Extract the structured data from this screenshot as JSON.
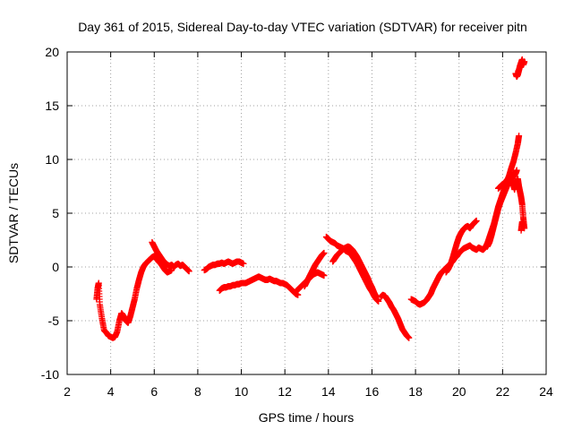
{
  "chart_data": {
    "type": "scatter",
    "title": "Day 361 of 2015, Sidereal Day-to-day VTEC variation (SDTVAR) for receiver pitn",
    "xlabel": "GPS time / hours",
    "ylabel": "SDTVAR / TECUs",
    "xlim": [
      2,
      24
    ],
    "ylim": [
      -10,
      20
    ],
    "xticks": [
      2,
      4,
      6,
      8,
      10,
      12,
      14,
      16,
      18,
      20,
      22,
      24
    ],
    "yticks": [
      -10,
      -5,
      0,
      5,
      10,
      15,
      20
    ],
    "grid": true,
    "marker": "+",
    "color": "#ff0000",
    "series": [
      {
        "name": "segment-1",
        "points": [
          [
            3.35,
            -3.0
          ],
          [
            3.4,
            -2.0
          ],
          [
            3.45,
            -1.5
          ],
          [
            3.5,
            -3.5
          ],
          [
            3.6,
            -4.8
          ],
          [
            3.7,
            -5.9
          ],
          [
            3.8,
            -6.1
          ],
          [
            3.9,
            -6.4
          ],
          [
            4.0,
            -6.5
          ],
          [
            4.1,
            -6.6
          ],
          [
            4.2,
            -6.5
          ],
          [
            4.3,
            -6.0
          ],
          [
            4.4,
            -5.0
          ],
          [
            4.5,
            -4.3
          ],
          [
            4.6,
            -4.6
          ],
          [
            4.7,
            -5.0
          ],
          [
            4.8,
            -5.2
          ],
          [
            4.9,
            -4.6
          ],
          [
            5.0,
            -3.8
          ],
          [
            5.1,
            -3.0
          ],
          [
            5.2,
            -2.0
          ],
          [
            5.3,
            -1.2
          ],
          [
            5.4,
            -0.5
          ],
          [
            5.5,
            0.0
          ],
          [
            5.6,
            0.3
          ],
          [
            5.7,
            0.5
          ],
          [
            5.8,
            0.7
          ],
          [
            5.9,
            0.9
          ],
          [
            6.0,
            1.0
          ],
          [
            6.1,
            0.8
          ],
          [
            6.2,
            0.5
          ],
          [
            6.3,
            0.3
          ],
          [
            6.4,
            0.0
          ],
          [
            6.5,
            -0.3
          ],
          [
            6.6,
            -0.5
          ],
          [
            6.7,
            -0.4
          ],
          [
            6.8,
            -0.3
          ]
        ]
      },
      {
        "name": "segment-2",
        "points": [
          [
            5.9,
            2.3
          ],
          [
            6.0,
            1.9
          ],
          [
            6.1,
            1.5
          ],
          [
            6.2,
            1.2
          ],
          [
            6.3,
            0.9
          ],
          [
            6.4,
            0.6
          ],
          [
            6.5,
            0.4
          ],
          [
            6.6,
            0.2
          ],
          [
            6.7,
            0.1
          ],
          [
            6.8,
            0.2
          ],
          [
            6.9,
            0.0
          ],
          [
            7.0,
            0.2
          ],
          [
            7.1,
            0.3
          ],
          [
            7.2,
            0.1
          ],
          [
            7.3,
            0.2
          ],
          [
            7.4,
            0.0
          ],
          [
            7.5,
            -0.2
          ],
          [
            7.6,
            -0.4
          ]
        ]
      },
      {
        "name": "segment-3",
        "points": [
          [
            8.3,
            -0.3
          ],
          [
            8.4,
            -0.2
          ],
          [
            8.5,
            0.0
          ],
          [
            8.6,
            0.1
          ],
          [
            8.7,
            0.2
          ],
          [
            8.8,
            0.2
          ],
          [
            8.9,
            0.3
          ],
          [
            9.0,
            0.3
          ],
          [
            9.1,
            0.4
          ],
          [
            9.2,
            0.3
          ],
          [
            9.3,
            0.4
          ],
          [
            9.4,
            0.5
          ],
          [
            9.5,
            0.4
          ],
          [
            9.6,
            0.3
          ],
          [
            9.7,
            0.4
          ],
          [
            9.8,
            0.5
          ],
          [
            9.9,
            0.5
          ],
          [
            10.0,
            0.4
          ],
          [
            10.1,
            0.3
          ]
        ]
      },
      {
        "name": "segment-4",
        "points": [
          [
            9.0,
            -2.2
          ],
          [
            9.1,
            -2.0
          ],
          [
            9.2,
            -1.9
          ],
          [
            9.3,
            -1.9
          ],
          [
            9.4,
            -1.8
          ],
          [
            9.5,
            -1.8
          ],
          [
            9.6,
            -1.7
          ],
          [
            9.7,
            -1.7
          ],
          [
            9.8,
            -1.6
          ],
          [
            9.9,
            -1.6
          ],
          [
            10.0,
            -1.5
          ],
          [
            10.1,
            -1.5
          ],
          [
            10.2,
            -1.5
          ],
          [
            10.3,
            -1.4
          ],
          [
            10.4,
            -1.3
          ],
          [
            10.5,
            -1.2
          ],
          [
            10.6,
            -1.1
          ],
          [
            10.7,
            -1.0
          ],
          [
            10.8,
            -0.9
          ],
          [
            10.9,
            -1.0
          ],
          [
            11.0,
            -1.1
          ],
          [
            11.1,
            -1.2
          ],
          [
            11.2,
            -1.2
          ],
          [
            11.3,
            -1.1
          ],
          [
            11.4,
            -1.2
          ],
          [
            11.5,
            -1.3
          ],
          [
            11.6,
            -1.3
          ],
          [
            11.7,
            -1.4
          ],
          [
            11.8,
            -1.5
          ],
          [
            11.9,
            -1.5
          ],
          [
            12.0,
            -1.6
          ],
          [
            12.1,
            -1.7
          ],
          [
            12.2,
            -1.9
          ],
          [
            12.3,
            -2.1
          ],
          [
            12.4,
            -2.3
          ],
          [
            12.5,
            -2.5
          ],
          [
            12.6,
            -2.6
          ]
        ]
      },
      {
        "name": "segment-5",
        "points": [
          [
            12.5,
            -2.3
          ],
          [
            12.6,
            -2.1
          ],
          [
            12.7,
            -1.9
          ],
          [
            12.8,
            -1.7
          ],
          [
            12.9,
            -1.5
          ],
          [
            13.0,
            -1.3
          ],
          [
            13.1,
            -1.1
          ],
          [
            13.2,
            -0.9
          ],
          [
            13.3,
            -0.7
          ],
          [
            13.4,
            -0.6
          ],
          [
            13.5,
            -0.5
          ],
          [
            13.6,
            -0.6
          ],
          [
            13.7,
            -0.7
          ],
          [
            13.8,
            -0.8
          ]
        ]
      },
      {
        "name": "segment-6",
        "points": [
          [
            12.9,
            -1.8
          ],
          [
            13.0,
            -1.4
          ],
          [
            13.1,
            -1.0
          ],
          [
            13.2,
            -0.6
          ],
          [
            13.3,
            -0.2
          ],
          [
            13.4,
            0.2
          ],
          [
            13.5,
            0.5
          ],
          [
            13.6,
            0.8
          ],
          [
            13.7,
            1.1
          ],
          [
            13.8,
            1.3
          ]
        ]
      },
      {
        "name": "segment-7",
        "points": [
          [
            13.9,
            2.8
          ],
          [
            14.0,
            2.6
          ],
          [
            14.1,
            2.4
          ],
          [
            14.2,
            2.3
          ],
          [
            14.3,
            2.2
          ],
          [
            14.4,
            2.0
          ],
          [
            14.5,
            1.9
          ],
          [
            14.6,
            1.8
          ],
          [
            14.7,
            1.7
          ],
          [
            14.8,
            1.5
          ],
          [
            14.9,
            1.4
          ],
          [
            15.0,
            1.3
          ],
          [
            15.1,
            1.0
          ],
          [
            15.2,
            0.7
          ],
          [
            15.3,
            0.4
          ],
          [
            15.4,
            0.0
          ],
          [
            15.5,
            -0.4
          ],
          [
            15.6,
            -0.8
          ],
          [
            15.7,
            -1.2
          ],
          [
            15.8,
            -1.6
          ],
          [
            15.9,
            -2.0
          ],
          [
            16.0,
            -2.3
          ],
          [
            16.1,
            -2.7
          ],
          [
            16.2,
            -3.0
          ],
          [
            16.3,
            -3.2
          ]
        ]
      },
      {
        "name": "segment-8",
        "points": [
          [
            14.2,
            0.5
          ],
          [
            14.3,
            0.8
          ],
          [
            14.4,
            1.1
          ],
          [
            14.5,
            1.3
          ],
          [
            14.6,
            1.5
          ],
          [
            14.7,
            1.7
          ],
          [
            14.8,
            1.8
          ],
          [
            14.9,
            1.9
          ],
          [
            15.0,
            1.8
          ],
          [
            15.1,
            1.6
          ],
          [
            15.2,
            1.3
          ],
          [
            15.3,
            1.0
          ],
          [
            15.4,
            0.6
          ],
          [
            15.5,
            0.2
          ],
          [
            15.6,
            -0.2
          ],
          [
            15.7,
            -0.6
          ],
          [
            15.8,
            -1.0
          ],
          [
            15.9,
            -1.5
          ],
          [
            16.0,
            -1.9
          ],
          [
            16.1,
            -2.4
          ],
          [
            16.2,
            -2.8
          ]
        ]
      },
      {
        "name": "segment-9",
        "points": [
          [
            16.4,
            -2.8
          ],
          [
            16.5,
            -2.6
          ],
          [
            16.6,
            -2.7
          ],
          [
            16.7,
            -3.0
          ],
          [
            16.8,
            -3.3
          ],
          [
            16.9,
            -3.7
          ],
          [
            17.0,
            -4.0
          ],
          [
            17.1,
            -4.4
          ],
          [
            17.2,
            -4.8
          ],
          [
            17.3,
            -5.3
          ],
          [
            17.4,
            -5.8
          ],
          [
            17.5,
            -6.1
          ],
          [
            17.6,
            -6.4
          ],
          [
            17.7,
            -6.6
          ]
        ]
      },
      {
        "name": "segment-10",
        "points": [
          [
            17.8,
            -3.0
          ],
          [
            17.9,
            -3.1
          ],
          [
            18.0,
            -3.2
          ],
          [
            18.1,
            -3.4
          ],
          [
            18.2,
            -3.5
          ],
          [
            18.3,
            -3.4
          ],
          [
            18.4,
            -3.3
          ],
          [
            18.5,
            -3.1
          ],
          [
            18.6,
            -2.8
          ],
          [
            18.7,
            -2.5
          ],
          [
            18.8,
            -2.0
          ],
          [
            18.9,
            -1.6
          ],
          [
            19.0,
            -1.2
          ],
          [
            19.1,
            -0.8
          ],
          [
            19.2,
            -0.5
          ],
          [
            19.3,
            -0.3
          ],
          [
            19.4,
            -0.1
          ],
          [
            19.5,
            0.1
          ],
          [
            19.6,
            0.3
          ],
          [
            19.7,
            0.5
          ],
          [
            19.8,
            0.8
          ],
          [
            19.9,
            1.0
          ],
          [
            20.0,
            1.3
          ],
          [
            20.1,
            1.5
          ],
          [
            20.2,
            1.7
          ],
          [
            20.3,
            1.8
          ],
          [
            20.4,
            1.9
          ],
          [
            20.5,
            2.0
          ],
          [
            20.6,
            1.8
          ],
          [
            20.7,
            1.7
          ],
          [
            20.8,
            1.6
          ],
          [
            20.9,
            1.8
          ],
          [
            21.0,
            1.7
          ],
          [
            21.1,
            1.6
          ],
          [
            21.2,
            1.8
          ],
          [
            21.3,
            2.2
          ],
          [
            21.4,
            2.8
          ],
          [
            21.5,
            3.4
          ],
          [
            21.6,
            4.0
          ],
          [
            21.7,
            4.8
          ],
          [
            21.8,
            5.6
          ],
          [
            21.9,
            6.2
          ],
          [
            22.0,
            6.8
          ],
          [
            22.1,
            7.4
          ],
          [
            22.2,
            8.0
          ],
          [
            22.3,
            8.5
          ],
          [
            22.4,
            9.2
          ],
          [
            22.5,
            9.8
          ],
          [
            22.6,
            10.6
          ],
          [
            22.7,
            11.5
          ],
          [
            22.75,
            12.2
          ]
        ]
      },
      {
        "name": "segment-11",
        "points": [
          [
            19.4,
            -0.5
          ],
          [
            19.5,
            -0.2
          ],
          [
            19.6,
            0.2
          ],
          [
            19.7,
            0.8
          ],
          [
            19.8,
            1.5
          ],
          [
            19.9,
            2.2
          ],
          [
            20.0,
            2.8
          ],
          [
            20.1,
            3.2
          ],
          [
            20.2,
            3.5
          ],
          [
            20.3,
            3.7
          ],
          [
            20.4,
            3.8
          ],
          [
            20.5,
            3.6
          ],
          [
            20.6,
            3.9
          ],
          [
            20.7,
            4.1
          ],
          [
            20.8,
            4.3
          ]
        ]
      },
      {
        "name": "segment-12",
        "points": [
          [
            21.3,
            1.9
          ],
          [
            21.4,
            2.3
          ],
          [
            21.5,
            3.0
          ],
          [
            21.6,
            3.8
          ],
          [
            21.7,
            4.6
          ],
          [
            21.8,
            5.4
          ],
          [
            21.9,
            6.0
          ],
          [
            22.0,
            6.5
          ],
          [
            22.1,
            7.0
          ],
          [
            22.2,
            7.5
          ],
          [
            22.3,
            7.9
          ],
          [
            22.4,
            8.2
          ],
          [
            22.5,
            8.4
          ],
          [
            22.6,
            8.7
          ],
          [
            22.65,
            9.0
          ]
        ]
      },
      {
        "name": "segment-13",
        "points": [
          [
            21.8,
            7.3
          ],
          [
            21.9,
            7.5
          ],
          [
            22.0,
            7.7
          ],
          [
            22.1,
            7.8
          ],
          [
            22.2,
            8.1
          ],
          [
            22.3,
            8.3
          ],
          [
            22.4,
            8.0
          ],
          [
            22.5,
            7.6
          ],
          [
            22.55,
            7.2
          ],
          [
            22.6,
            7.8
          ],
          [
            22.7,
            8.2
          ],
          [
            22.75,
            7.5
          ],
          [
            22.8,
            7.0
          ],
          [
            22.85,
            6.5
          ],
          [
            22.9,
            5.8
          ],
          [
            22.95,
            4.6
          ],
          [
            23.0,
            3.6
          ],
          [
            22.9,
            4.2
          ],
          [
            22.85,
            3.4
          ]
        ]
      },
      {
        "name": "segment-14",
        "points": [
          [
            22.6,
            18.0
          ],
          [
            22.65,
            17.7
          ],
          [
            22.7,
            17.9
          ],
          [
            22.75,
            18.3
          ],
          [
            22.8,
            18.7
          ],
          [
            22.85,
            19.0
          ],
          [
            22.9,
            19.3
          ],
          [
            22.95,
            18.8
          ],
          [
            23.0,
            19.1
          ]
        ]
      }
    ]
  }
}
